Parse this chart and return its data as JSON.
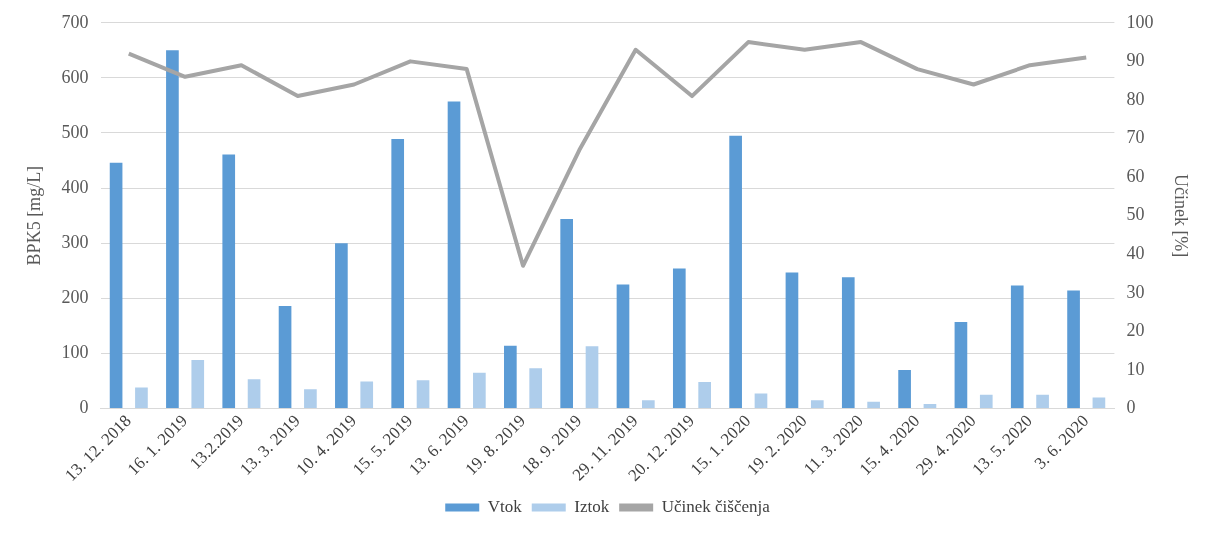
{
  "chart_data": {
    "type": "bar",
    "ylabel": "BPK5 [mg/L]",
    "y2label": "Učinek [%]",
    "categories": [
      "13. 12. 2018",
      "16. 1. 2019",
      "13.2.2019",
      "13. 3. 2019",
      "10. 4. 2019",
      "15. 5. 2019",
      "13. 6. 2019",
      "19. 8. 2019",
      "18. 9. 2019",
      "29. 11. 2019",
      "20. 12. 2019",
      "15. 1. 2020",
      "19. 2. 2020",
      "11. 3. 2020",
      "15. 4. 2020",
      "29. 4. 2020",
      "13. 5. 2020",
      "3. 6. 2020"
    ],
    "series": [
      {
        "name": "Vtok",
        "color": "#5b9bd5",
        "values": [
          446,
          650,
          461,
          186,
          300,
          489,
          557,
          114,
          344,
          225,
          254,
          495,
          247,
          238,
          70,
          157,
          223,
          214
        ]
      },
      {
        "name": "Iztok",
        "color": "#aecdeb",
        "values": [
          38,
          88,
          53,
          35,
          49,
          51,
          65,
          73,
          113,
          15,
          48,
          27,
          15,
          12,
          8,
          25,
          25,
          20
        ]
      },
      {
        "name": "Učinek čiščenja",
        "type": "line",
        "axis": "y2",
        "color": "#a5a5a5",
        "values": [
          92,
          86,
          89,
          81,
          84,
          90,
          88,
          37,
          67,
          93,
          81,
          95,
          93,
          95,
          88,
          84,
          89,
          91
        ]
      }
    ],
    "ylim": [
      0,
      700
    ],
    "yticks": [
      0,
      100,
      200,
      300,
      400,
      500,
      600,
      700
    ],
    "y2lim": [
      0,
      100
    ],
    "y2ticks": [
      0,
      10,
      20,
      30,
      40,
      50,
      60,
      70,
      80,
      90,
      100
    ],
    "grid": "y",
    "legend": "bottom",
    "marker": "none"
  }
}
